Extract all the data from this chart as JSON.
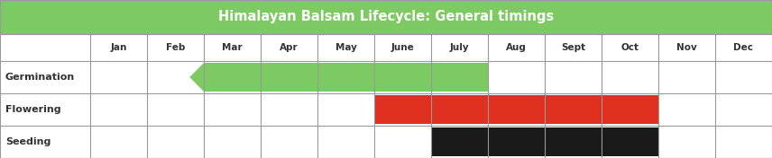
{
  "title": "Himalayan Balsam Lifecycle: General timings",
  "title_bg_color": "#7DC962",
  "title_text_color": "#ffffff",
  "months": [
    "Jan",
    "Feb",
    "Mar",
    "Apr",
    "May",
    "June",
    "July",
    "Aug",
    "Sept",
    "Oct",
    "Nov",
    "Dec"
  ],
  "row_labels": [
    "Germination",
    "Flowering",
    "Seeding"
  ],
  "germination_color": "#7DC962",
  "flowering_color": "#E03020",
  "seeding_color": "#1A1A1A",
  "grid_color": "#999999",
  "background_color": "#FFFFFF",
  "title_fontsize": 10.5,
  "label_fontsize": 8,
  "month_fontsize": 7.5
}
